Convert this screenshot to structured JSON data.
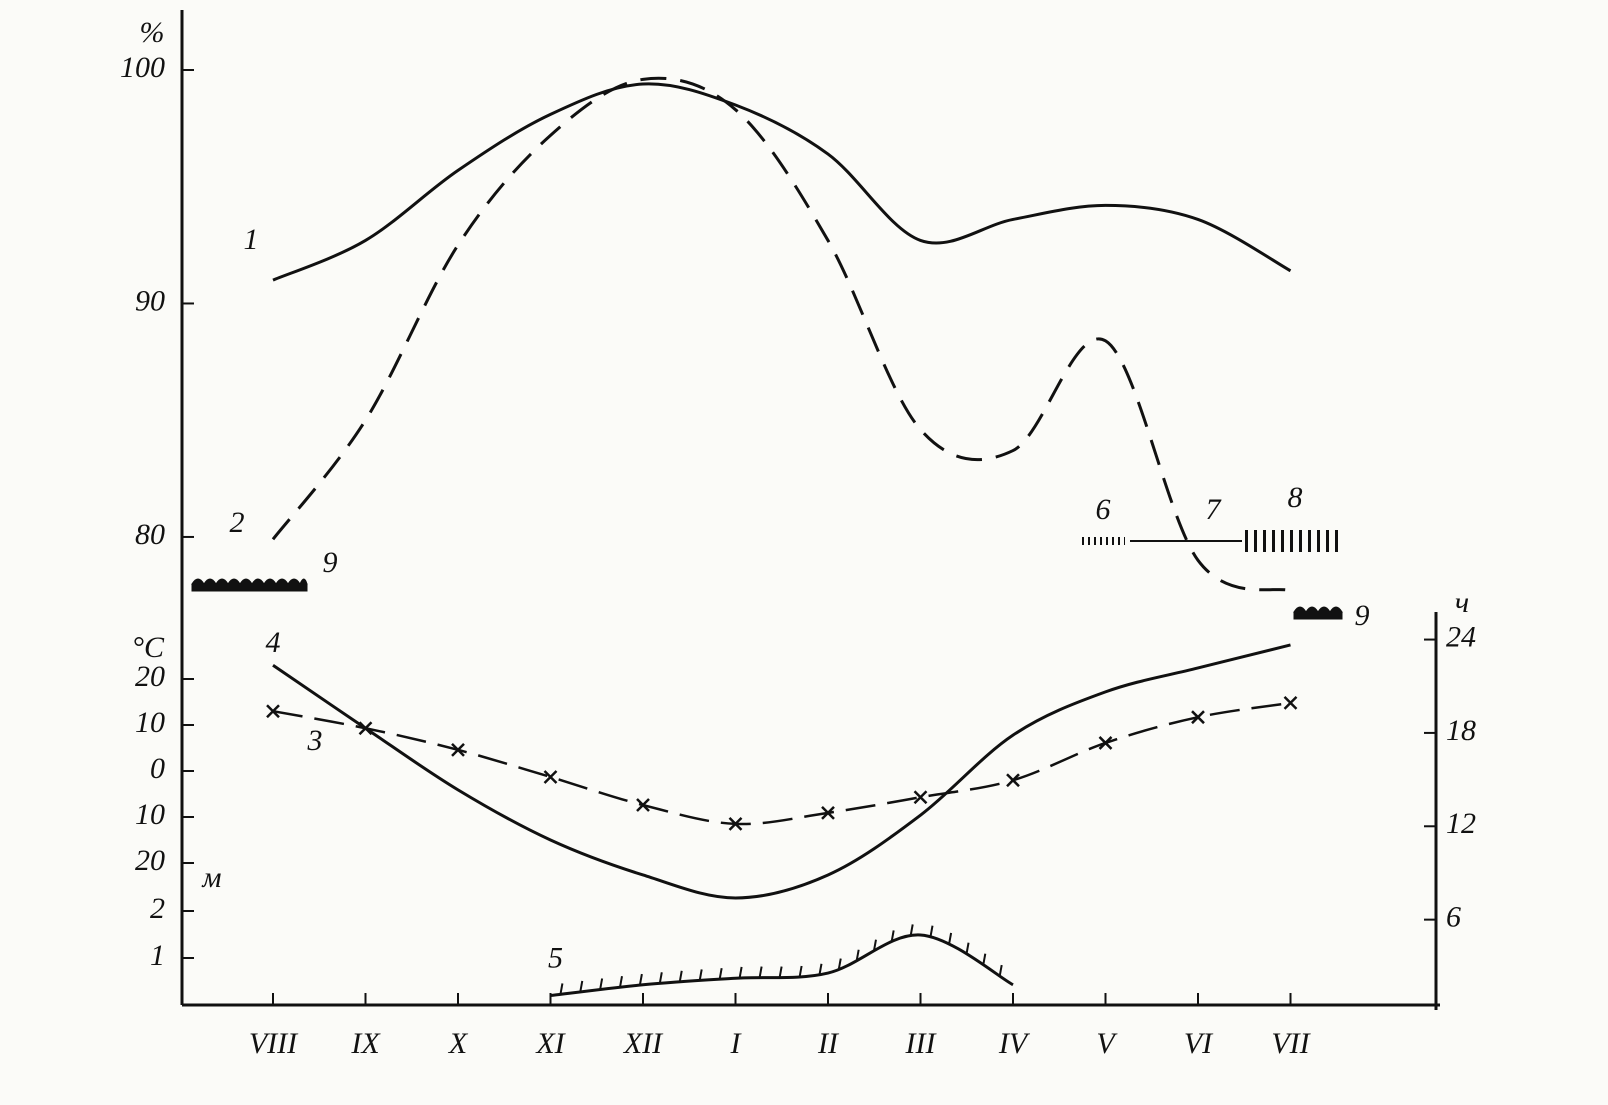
{
  "chart_data": [
    {
      "type": "line",
      "y_unit": "%",
      "ylim": [
        77,
        102
      ],
      "yticks": [
        80,
        90,
        100
      ],
      "series": [
        {
          "name": "1",
          "style": "solid",
          "color": "#111111",
          "values": [
            91.0,
            92.7,
            95.7,
            98.1,
            99.4,
            98.5,
            96.4,
            92.7,
            93.6,
            94.2,
            93.6,
            91.4
          ]
        },
        {
          "name": "2",
          "style": "dashed",
          "color": "#111111",
          "values": [
            79.9,
            85.0,
            92.5,
            97.2,
            99.6,
            98.3,
            92.7,
            84.6,
            83.7,
            88.4,
            79.0,
            77.7
          ]
        }
      ],
      "annotations": [
        "6",
        "7",
        "8",
        "9",
        "9"
      ]
    },
    {
      "type": "line",
      "y_unit": "°C",
      "ylim": [
        -30,
        30
      ],
      "yticks": [
        20,
        10,
        0,
        {
          "value": -10,
          "label": "10"
        },
        {
          "value": -20,
          "label": "20"
        }
      ],
      "y2_unit": "ч",
      "y2lim": [
        0,
        25
      ],
      "y2ticks": [
        6,
        12,
        18,
        24
      ],
      "series": [
        {
          "name": "4",
          "style": "solid",
          "color": "#111111",
          "values": [
            23,
            9.3,
            -4.1,
            -15,
            -22.6,
            -27.6,
            -22.6,
            -9.6,
            7.8,
            17.2,
            22.4,
            27.4
          ]
        },
        {
          "name": "3",
          "style": "dash-cross",
          "color": "#111111",
          "values": [
            13,
            9.3,
            4.6,
            -1.3,
            -7.4,
            -11.5,
            -9.1,
            -5.7,
            -2,
            6.1,
            11.7,
            14.8
          ]
        }
      ]
    },
    {
      "type": "line",
      "y_unit": "м",
      "ylim": [
        0,
        2.2
      ],
      "yticks": [
        1,
        2
      ],
      "categories": [
        "VIII",
        "IX",
        "X",
        "XI",
        "XII",
        "I",
        "II",
        "III",
        "IV",
        "V",
        "VI",
        "VII"
      ],
      "series": [
        {
          "name": "5",
          "style": "hatched",
          "color": "#111111",
          "values": [
            null,
            null,
            null,
            0.2,
            0.43,
            0.57,
            0.68,
            1.49,
            0.43,
            null,
            null,
            null
          ]
        }
      ]
    }
  ]
}
